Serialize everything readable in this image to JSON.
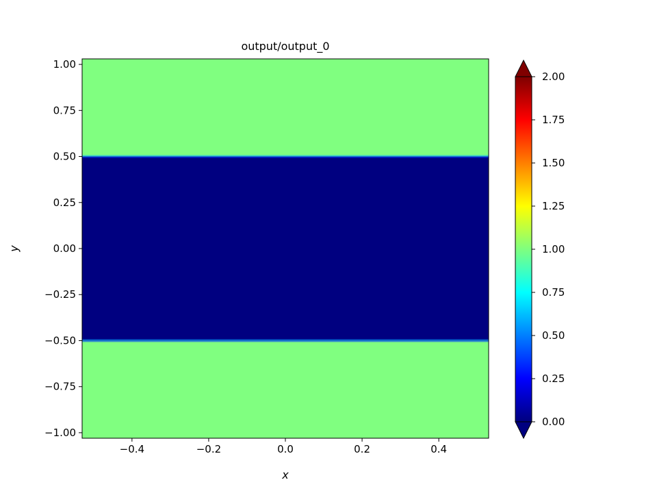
{
  "chart_data": {
    "type": "heatmap",
    "title": "output/output_0",
    "xlabel": "x",
    "ylabel": "y",
    "xlim": [
      -0.53,
      0.53
    ],
    "ylim": [
      -1.03,
      1.03
    ],
    "xticks": [
      -0.4,
      -0.2,
      0.0,
      0.2,
      0.4
    ],
    "xtick_labels": [
      "−0.4",
      "−0.2",
      "0.0",
      "0.2",
      "0.4"
    ],
    "yticks": [
      1.0,
      0.75,
      0.5,
      0.25,
      0.0,
      -0.25,
      -0.5,
      -0.75,
      -1.0
    ],
    "ytick_labels": [
      "1.00",
      "0.75",
      "0.50",
      "0.25",
      "0.00",
      "−0.25",
      "−0.50",
      "−0.75",
      "−1.00"
    ],
    "regions": [
      {
        "y_range": [
          0.5,
          1.03
        ],
        "value": 1.0
      },
      {
        "y_range": [
          -0.5,
          0.5
        ],
        "value": 0.0
      },
      {
        "y_range": [
          -1.03,
          -0.5
        ],
        "value": 1.0
      }
    ],
    "colormap": "jet",
    "colorbar": {
      "vmin": 0.0,
      "vmax": 2.0,
      "extend": "both",
      "ticks": [
        2.0,
        1.75,
        1.5,
        1.25,
        1.0,
        0.75,
        0.5,
        0.25,
        0.0
      ],
      "tick_labels": [
        "2.00",
        "1.75",
        "1.50",
        "1.25",
        "1.00",
        "0.75",
        "0.50",
        "0.25",
        "0.00"
      ]
    },
    "grid": false
  }
}
